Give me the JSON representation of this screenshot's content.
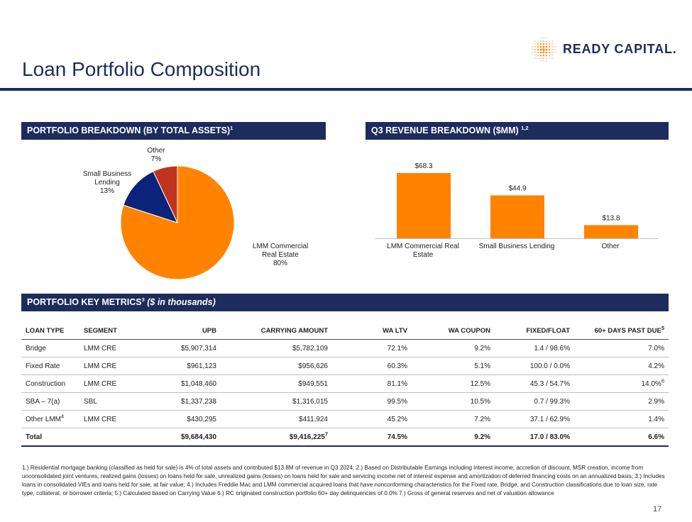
{
  "header": {
    "title": "Loan Portfolio Composition",
    "brand": "READY CAPITAL."
  },
  "colors": {
    "navy": "#1d2c5c",
    "orange": "#ff8200",
    "lmm": "#ff8200",
    "sbl": "#0c237a",
    "other": "#c0341d"
  },
  "portfolio_breakdown": {
    "heading": "PORTFOLIO BREAKDOWN (BY TOTAL ASSETS)",
    "heading_sup": "1",
    "slices": [
      {
        "name": "LMM Commercial Real Estate",
        "pct_label": "80%",
        "value": 80
      },
      {
        "name": "Small Business Lending",
        "pct_label": "13%",
        "value": 13
      },
      {
        "name": "Other",
        "pct_label": "7%",
        "value": 7
      }
    ],
    "labels": {
      "lmm_line1": "LMM Commercial",
      "lmm_line2": "Real Estate",
      "lmm_pct": "80%",
      "sbl_line1": "Small Business",
      "sbl_line2": "Lending",
      "sbl_pct": "13%",
      "other_line1": "Other",
      "other_pct": "7%"
    }
  },
  "revenue_breakdown": {
    "heading": "Q3 REVENUE BREAKDOWN ($MM)",
    "heading_sup": "1,2",
    "cat1_line1": "LMM Commercial Real",
    "cat1_line2": "Estate",
    "cat2": "Small Business Lending",
    "cat3": "Other"
  },
  "chart_data": {
    "type": "bar",
    "title": "Q3 REVENUE BREAKDOWN ($MM)",
    "categories": [
      "LMM Commercial Real Estate",
      "Small Business Lending",
      "Other"
    ],
    "values": [
      68.3,
      44.9,
      13.8
    ],
    "value_labels": [
      "$68.3",
      "$44.9",
      "$13.8"
    ],
    "ylim": [
      0,
      68.3
    ],
    "grid": false,
    "color": "#ff8200"
  },
  "metrics": {
    "heading": "PORTFOLIO KEY METRICS",
    "heading_sup": "3",
    "heading_italic": "($ in thousands)",
    "columns": {
      "loan_type": "LOAN TYPE",
      "segment": "SEGMENT",
      "upb": "UPB",
      "carrying": "CARRYING AMOUNT",
      "ltv": "WA LTV",
      "coupon": "WA COUPON",
      "fixed_float": "FIXED/FLOAT",
      "past_due": "60+ DAYS PAST DUE",
      "past_due_sup": "5"
    },
    "rows": [
      {
        "type": "Bridge",
        "type_sup": "",
        "segment": "LMM CRE",
        "upb": "$5,907,314",
        "carrying": "$5,782,109",
        "carrying_sup": "",
        "ltv": "72.1%",
        "coupon": "9.2%",
        "ff": "1.4 / 98.6%",
        "pd": "7.0%",
        "pd_sup": ""
      },
      {
        "type": "Fixed Rate",
        "type_sup": "",
        "segment": "LMM CRE",
        "upb": "$961,123",
        "carrying": "$956,626",
        "carrying_sup": "",
        "ltv": "60.3%",
        "coupon": "5.1%",
        "ff": "100.0 / 0.0%",
        "pd": "4.2%",
        "pd_sup": ""
      },
      {
        "type": "Construction",
        "type_sup": "",
        "segment": "LMM CRE",
        "upb": "$1,048,460",
        "carrying": "$949,551",
        "carrying_sup": "",
        "ltv": "81.1%",
        "coupon": "12.5%",
        "ff": "45.3 / 54.7%",
        "pd": "14.0%",
        "pd_sup": "6"
      },
      {
        "type": "SBA – 7(a)",
        "type_sup": "",
        "segment": "SBL",
        "upb": "$1,337,238",
        "carrying": "$1,316,015",
        "carrying_sup": "",
        "ltv": "99.5%",
        "coupon": "10.5%",
        "ff": "0.7 / 99.3%",
        "pd": "2.9%",
        "pd_sup": ""
      },
      {
        "type": "Other LMM",
        "type_sup": "4",
        "segment": "LMM CRE",
        "upb": "$430,295",
        "carrying": "$411,924",
        "carrying_sup": "",
        "ltv": "45.2%",
        "coupon": "7.2%",
        "ff": "37.1 / 62.9%",
        "pd": "1.4%",
        "pd_sup": ""
      }
    ],
    "total": {
      "type": "Total",
      "upb": "$9,684,430",
      "carrying": "$9,416,225",
      "carrying_sup": "7",
      "ltv": "74.5%",
      "coupon": "9.2%",
      "ff": "17.0 / 83.0%",
      "pd": "6.6%"
    }
  },
  "footnote": "1.) Residential mortgage banking (classified as held for sale) is 4% of total assets and contributed $13.8M of revenue in Q3 2024; 2.) Based on Distributable Earnings including interest income, accretion of discount, MSR creation, income from unconsolidated joint ventures, realized gains (losses) on loans held for sale, unrealized gains (losses) on loans held for sale and servicing income net of interest expense and amortization of deferred financing costs on an annualized basis; 3.) Includes loans in consolidated VIEs and loans held for sale, at fair value; 4.) Includes Freddie Mac and LMM commercial acquired loans that have nonconforming characteristics for the Fixed rate, Bridge, and Construction classifications due to loan size, rate type, collateral, or borrower criteria; 5.) Calculated based on Carrying Value 6.) RC originated construction portfolio 60+ day delinquencies of 0.0% 7.) Gross of general reserves and net of valuation allowance",
  "page_number": "17"
}
